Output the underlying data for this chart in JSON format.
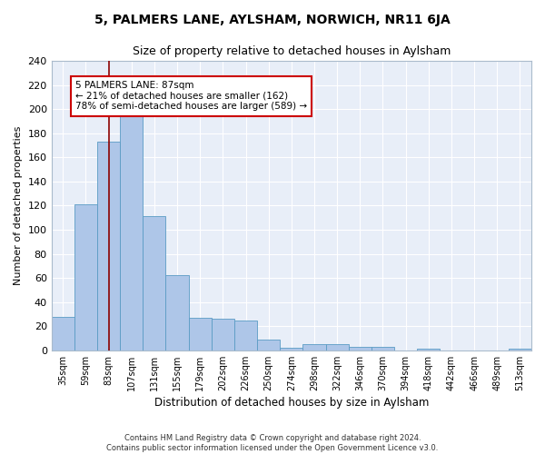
{
  "title": "5, PALMERS LANE, AYLSHAM, NORWICH, NR11 6JA",
  "subtitle": "Size of property relative to detached houses in Aylsham",
  "xlabel": "Distribution of detached houses by size in Aylsham",
  "ylabel": "Number of detached properties",
  "bar_labels": [
    "35sqm",
    "59sqm",
    "83sqm",
    "107sqm",
    "131sqm",
    "155sqm",
    "179sqm",
    "202sqm",
    "226sqm",
    "250sqm",
    "274sqm",
    "298sqm",
    "322sqm",
    "346sqm",
    "370sqm",
    "394sqm",
    "418sqm",
    "442sqm",
    "466sqm",
    "489sqm",
    "513sqm"
  ],
  "bar_values": [
    28,
    121,
    173,
    197,
    111,
    62,
    27,
    26,
    25,
    9,
    2,
    5,
    5,
    3,
    3,
    0,
    1,
    0,
    0,
    0,
    1
  ],
  "bar_color": "#aec6e8",
  "bar_edge_color": "#5a9bc4",
  "vline_color": "#8b0000",
  "vline_x": 2.0,
  "annotation_text": "5 PALMERS LANE: 87sqm\n← 21% of detached houses are smaller (162)\n78% of semi-detached houses are larger (589) →",
  "annotation_box_color": "#ffffff",
  "annotation_box_edge": "#cc0000",
  "ylim": [
    0,
    240
  ],
  "yticks": [
    0,
    20,
    40,
    60,
    80,
    100,
    120,
    140,
    160,
    180,
    200,
    220,
    240
  ],
  "background_color": "#e8eef8",
  "footer_line1": "Contains HM Land Registry data © Crown copyright and database right 2024.",
  "footer_line2": "Contains public sector information licensed under the Open Government Licence v3.0."
}
